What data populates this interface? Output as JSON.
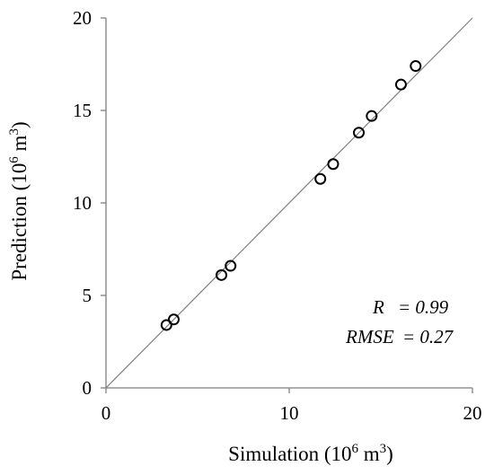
{
  "chart_data": {
    "type": "scatter",
    "xlabel": "Simulation (10",
    "xlabel_sup": "6",
    "xlabel_unit": " m",
    "xlabel_unit_sup": "3",
    "xlabel_end": ")",
    "ylabel": "Prediction (10",
    "ylabel_sup": "6",
    "ylabel_unit": " m",
    "ylabel_unit_sup": "3",
    "ylabel_end": ")",
    "xlim": [
      0,
      20
    ],
    "ylim": [
      0,
      20
    ],
    "xticks": [
      "0",
      "10",
      "20"
    ],
    "yticks": [
      "0",
      "5",
      "10",
      "15",
      "20"
    ],
    "grid": false,
    "reference_line": "y = x",
    "points": [
      {
        "x": 3.3,
        "y": 3.4
      },
      {
        "x": 3.7,
        "y": 3.7
      },
      {
        "x": 6.3,
        "y": 6.1
      },
      {
        "x": 6.8,
        "y": 6.6
      },
      {
        "x": 11.7,
        "y": 11.3
      },
      {
        "x": 12.4,
        "y": 12.1
      },
      {
        "x": 13.8,
        "y": 13.8
      },
      {
        "x": 14.5,
        "y": 14.7
      },
      {
        "x": 16.1,
        "y": 16.4
      },
      {
        "x": 16.9,
        "y": 17.4
      }
    ],
    "annotations": {
      "r_label": "R",
      "r_value": "= 0.99",
      "rmse_label": "RMSE",
      "rmse_value": "= 0.27"
    },
    "colors": {
      "marker_stroke": "#000000",
      "axis": "#7f7f7f",
      "reference_line": "#7f7f7f"
    }
  }
}
